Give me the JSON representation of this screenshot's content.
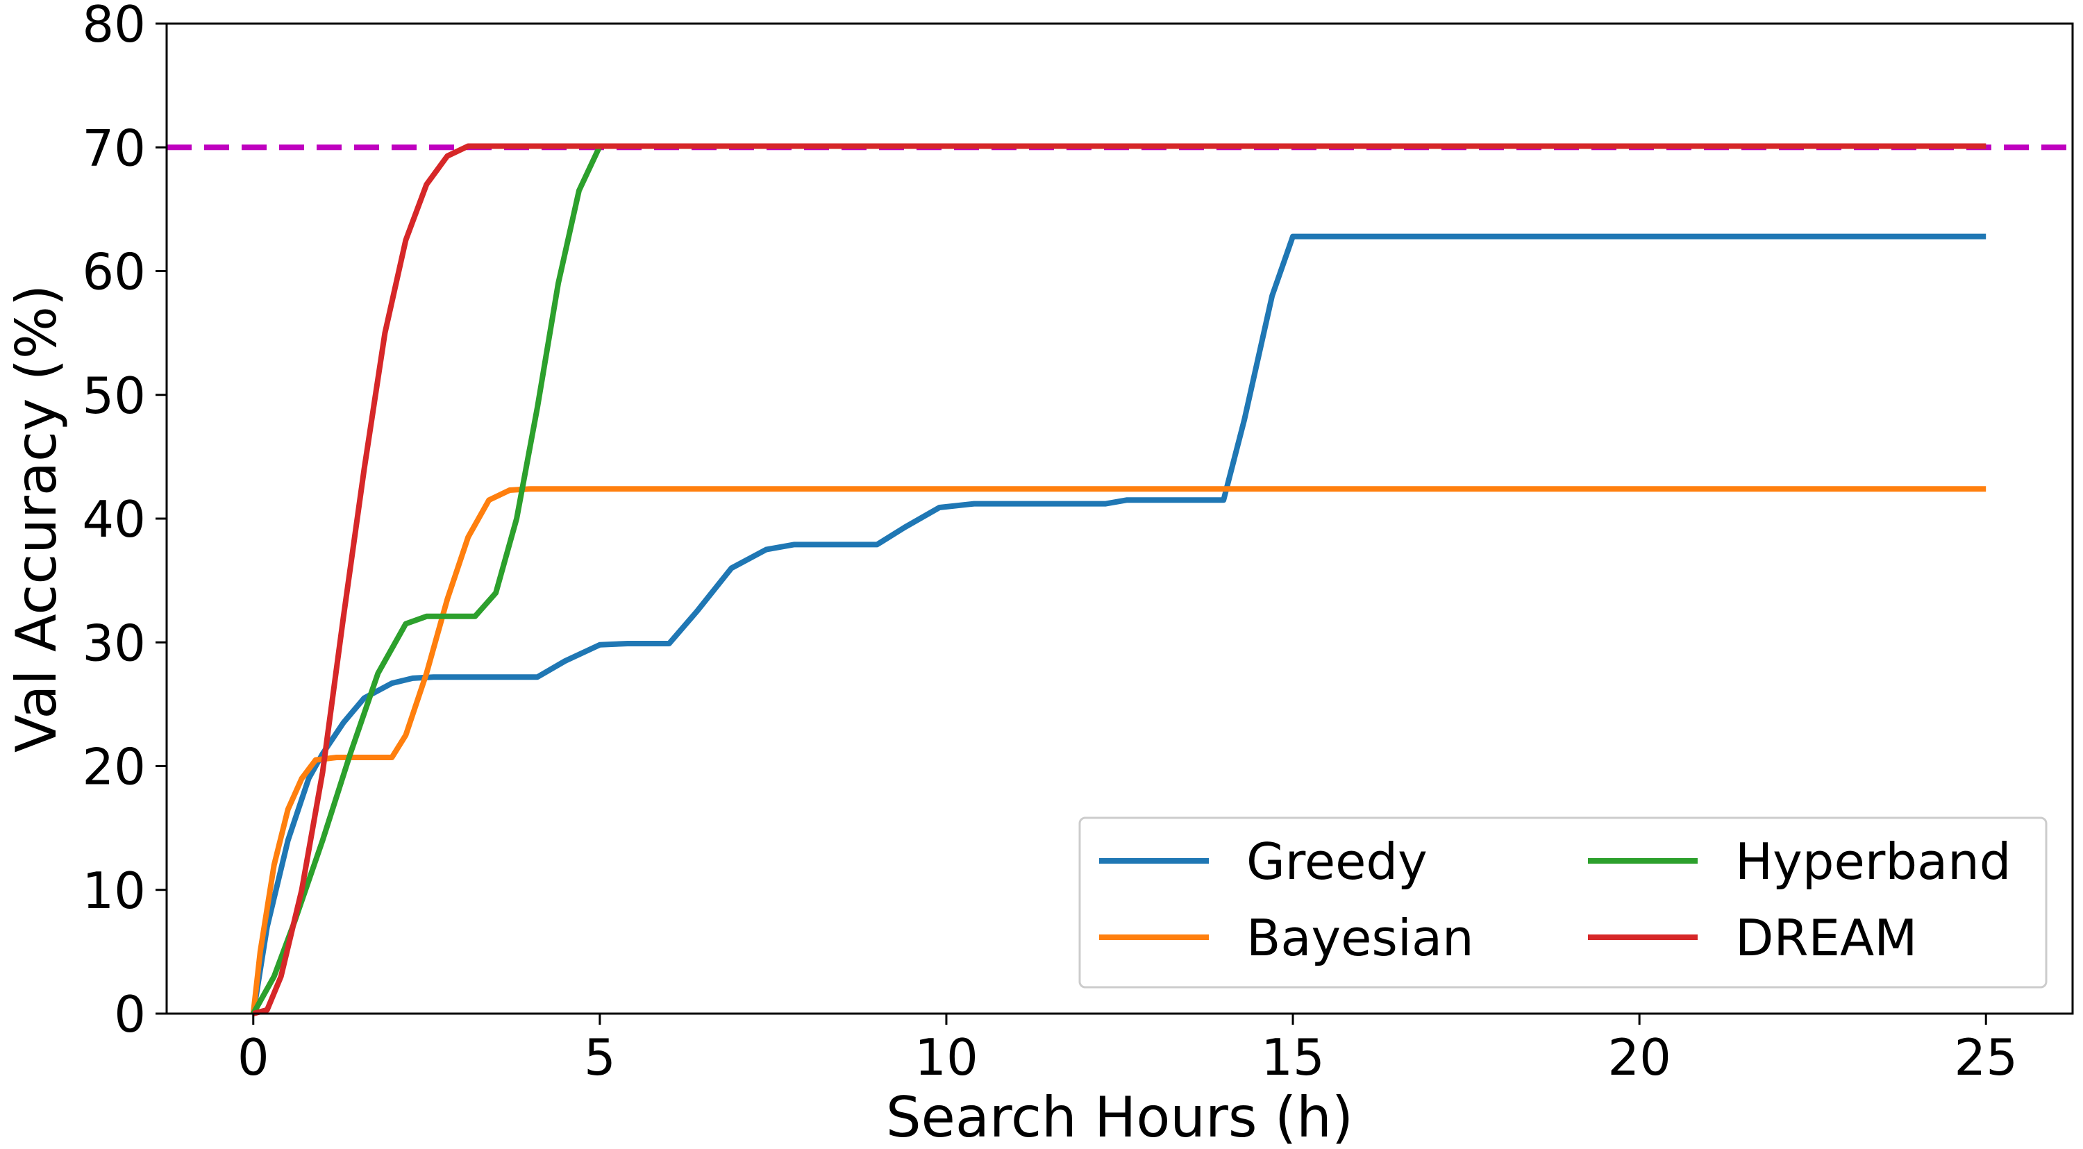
{
  "chart_data": {
    "type": "line",
    "title": "",
    "xlabel": "Search Hours (h)",
    "ylabel": "Val Accuracy (%)",
    "xlim": [
      -1.25,
      26.25
    ],
    "ylim": [
      0,
      80
    ],
    "xticks": [
      0,
      5,
      10,
      15,
      20,
      25
    ],
    "yticks": [
      0,
      10,
      20,
      30,
      40,
      50,
      60,
      70,
      80
    ],
    "grid": false,
    "legend": {
      "position": "lower-right",
      "columns": 2
    },
    "reference_line": {
      "y": 70,
      "style": "dashed",
      "color": "#bf00bf"
    },
    "series": [
      {
        "name": "Greedy",
        "color": "#1f77b4",
        "x": [
          0,
          0.2,
          0.5,
          0.8,
          1.0,
          1.3,
          1.6,
          2.0,
          2.3,
          2.6,
          4.1,
          4.5,
          5.0,
          5.4,
          6.0,
          6.4,
          6.9,
          7.4,
          7.8,
          9.0,
          9.4,
          9.9,
          10.4,
          12.3,
          12.6,
          14.0,
          14.3,
          14.7,
          15.0,
          25.0
        ],
        "y": [
          0,
          7,
          14,
          19,
          21,
          23.5,
          25.5,
          26.7,
          27.1,
          27.2,
          27.2,
          28.5,
          29.8,
          29.9,
          29.9,
          32.5,
          36,
          37.5,
          37.9,
          37.9,
          39.3,
          40.9,
          41.2,
          41.2,
          41.5,
          41.5,
          48,
          58,
          62.8,
          62.8
        ]
      },
      {
        "name": "Bayesian",
        "color": "#ff7f0e",
        "x": [
          0,
          0.1,
          0.3,
          0.5,
          0.7,
          0.9,
          1.2,
          2.0,
          2.2,
          2.5,
          2.8,
          3.1,
          3.4,
          3.7,
          4.0,
          25.0
        ],
        "y": [
          0,
          5,
          12,
          16.5,
          19,
          20.5,
          20.7,
          20.7,
          22.5,
          27.5,
          33.5,
          38.5,
          41.5,
          42.3,
          42.4,
          42.4
        ]
      },
      {
        "name": "Hyperband",
        "color": "#2ca02c",
        "x": [
          0,
          0.3,
          0.6,
          1.0,
          1.4,
          1.8,
          2.2,
          2.5,
          3.2,
          3.5,
          3.8,
          4.1,
          4.4,
          4.7,
          5.0,
          25.0
        ],
        "y": [
          0,
          3,
          7.5,
          14,
          21,
          27.5,
          31.5,
          32.1,
          32.1,
          34,
          40,
          49,
          59,
          66.5,
          70.1,
          70.1
        ]
      },
      {
        "name": "DREAM",
        "color": "#d62728",
        "x": [
          0,
          0.2,
          0.4,
          0.7,
          1.0,
          1.3,
          1.6,
          1.9,
          2.2,
          2.5,
          2.8,
          3.1,
          25.0
        ],
        "y": [
          0,
          0.3,
          3,
          10,
          19.5,
          32,
          44,
          55,
          62.5,
          67,
          69.3,
          70.1,
          70.1
        ]
      }
    ]
  }
}
